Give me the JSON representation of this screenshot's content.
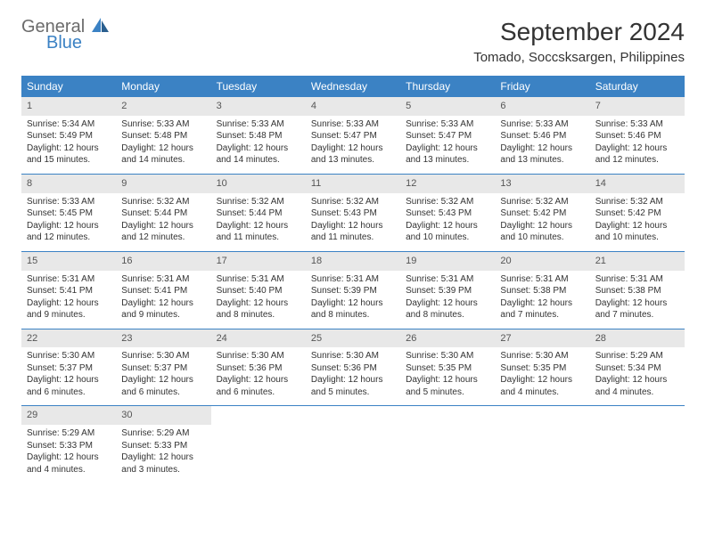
{
  "logo": {
    "text1": "General",
    "text2": "Blue"
  },
  "title": "September 2024",
  "location": "Tomado, Soccsksargen, Philippines",
  "headers": [
    "Sunday",
    "Monday",
    "Tuesday",
    "Wednesday",
    "Thursday",
    "Friday",
    "Saturday"
  ],
  "colors": {
    "header_bg": "#3b82c4",
    "header_fg": "#ffffff",
    "daynum_bg": "#e8e8e8",
    "border": "#3b82c4",
    "logo_gray": "#6b6b6b",
    "logo_blue": "#3b82c4"
  },
  "weeks": [
    [
      {
        "n": "1",
        "sr": "Sunrise: 5:34 AM",
        "ss": "Sunset: 5:49 PM",
        "d1": "Daylight: 12 hours",
        "d2": "and 15 minutes."
      },
      {
        "n": "2",
        "sr": "Sunrise: 5:33 AM",
        "ss": "Sunset: 5:48 PM",
        "d1": "Daylight: 12 hours",
        "d2": "and 14 minutes."
      },
      {
        "n": "3",
        "sr": "Sunrise: 5:33 AM",
        "ss": "Sunset: 5:48 PM",
        "d1": "Daylight: 12 hours",
        "d2": "and 14 minutes."
      },
      {
        "n": "4",
        "sr": "Sunrise: 5:33 AM",
        "ss": "Sunset: 5:47 PM",
        "d1": "Daylight: 12 hours",
        "d2": "and 13 minutes."
      },
      {
        "n": "5",
        "sr": "Sunrise: 5:33 AM",
        "ss": "Sunset: 5:47 PM",
        "d1": "Daylight: 12 hours",
        "d2": "and 13 minutes."
      },
      {
        "n": "6",
        "sr": "Sunrise: 5:33 AM",
        "ss": "Sunset: 5:46 PM",
        "d1": "Daylight: 12 hours",
        "d2": "and 13 minutes."
      },
      {
        "n": "7",
        "sr": "Sunrise: 5:33 AM",
        "ss": "Sunset: 5:46 PM",
        "d1": "Daylight: 12 hours",
        "d2": "and 12 minutes."
      }
    ],
    [
      {
        "n": "8",
        "sr": "Sunrise: 5:33 AM",
        "ss": "Sunset: 5:45 PM",
        "d1": "Daylight: 12 hours",
        "d2": "and 12 minutes."
      },
      {
        "n": "9",
        "sr": "Sunrise: 5:32 AM",
        "ss": "Sunset: 5:44 PM",
        "d1": "Daylight: 12 hours",
        "d2": "and 12 minutes."
      },
      {
        "n": "10",
        "sr": "Sunrise: 5:32 AM",
        "ss": "Sunset: 5:44 PM",
        "d1": "Daylight: 12 hours",
        "d2": "and 11 minutes."
      },
      {
        "n": "11",
        "sr": "Sunrise: 5:32 AM",
        "ss": "Sunset: 5:43 PM",
        "d1": "Daylight: 12 hours",
        "d2": "and 11 minutes."
      },
      {
        "n": "12",
        "sr": "Sunrise: 5:32 AM",
        "ss": "Sunset: 5:43 PM",
        "d1": "Daylight: 12 hours",
        "d2": "and 10 minutes."
      },
      {
        "n": "13",
        "sr": "Sunrise: 5:32 AM",
        "ss": "Sunset: 5:42 PM",
        "d1": "Daylight: 12 hours",
        "d2": "and 10 minutes."
      },
      {
        "n": "14",
        "sr": "Sunrise: 5:32 AM",
        "ss": "Sunset: 5:42 PM",
        "d1": "Daylight: 12 hours",
        "d2": "and 10 minutes."
      }
    ],
    [
      {
        "n": "15",
        "sr": "Sunrise: 5:31 AM",
        "ss": "Sunset: 5:41 PM",
        "d1": "Daylight: 12 hours",
        "d2": "and 9 minutes."
      },
      {
        "n": "16",
        "sr": "Sunrise: 5:31 AM",
        "ss": "Sunset: 5:41 PM",
        "d1": "Daylight: 12 hours",
        "d2": "and 9 minutes."
      },
      {
        "n": "17",
        "sr": "Sunrise: 5:31 AM",
        "ss": "Sunset: 5:40 PM",
        "d1": "Daylight: 12 hours",
        "d2": "and 8 minutes."
      },
      {
        "n": "18",
        "sr": "Sunrise: 5:31 AM",
        "ss": "Sunset: 5:39 PM",
        "d1": "Daylight: 12 hours",
        "d2": "and 8 minutes."
      },
      {
        "n": "19",
        "sr": "Sunrise: 5:31 AM",
        "ss": "Sunset: 5:39 PM",
        "d1": "Daylight: 12 hours",
        "d2": "and 8 minutes."
      },
      {
        "n": "20",
        "sr": "Sunrise: 5:31 AM",
        "ss": "Sunset: 5:38 PM",
        "d1": "Daylight: 12 hours",
        "d2": "and 7 minutes."
      },
      {
        "n": "21",
        "sr": "Sunrise: 5:31 AM",
        "ss": "Sunset: 5:38 PM",
        "d1": "Daylight: 12 hours",
        "d2": "and 7 minutes."
      }
    ],
    [
      {
        "n": "22",
        "sr": "Sunrise: 5:30 AM",
        "ss": "Sunset: 5:37 PM",
        "d1": "Daylight: 12 hours",
        "d2": "and 6 minutes."
      },
      {
        "n": "23",
        "sr": "Sunrise: 5:30 AM",
        "ss": "Sunset: 5:37 PM",
        "d1": "Daylight: 12 hours",
        "d2": "and 6 minutes."
      },
      {
        "n": "24",
        "sr": "Sunrise: 5:30 AM",
        "ss": "Sunset: 5:36 PM",
        "d1": "Daylight: 12 hours",
        "d2": "and 6 minutes."
      },
      {
        "n": "25",
        "sr": "Sunrise: 5:30 AM",
        "ss": "Sunset: 5:36 PM",
        "d1": "Daylight: 12 hours",
        "d2": "and 5 minutes."
      },
      {
        "n": "26",
        "sr": "Sunrise: 5:30 AM",
        "ss": "Sunset: 5:35 PM",
        "d1": "Daylight: 12 hours",
        "d2": "and 5 minutes."
      },
      {
        "n": "27",
        "sr": "Sunrise: 5:30 AM",
        "ss": "Sunset: 5:35 PM",
        "d1": "Daylight: 12 hours",
        "d2": "and 4 minutes."
      },
      {
        "n": "28",
        "sr": "Sunrise: 5:29 AM",
        "ss": "Sunset: 5:34 PM",
        "d1": "Daylight: 12 hours",
        "d2": "and 4 minutes."
      }
    ],
    [
      {
        "n": "29",
        "sr": "Sunrise: 5:29 AM",
        "ss": "Sunset: 5:33 PM",
        "d1": "Daylight: 12 hours",
        "d2": "and 4 minutes."
      },
      {
        "n": "30",
        "sr": "Sunrise: 5:29 AM",
        "ss": "Sunset: 5:33 PM",
        "d1": "Daylight: 12 hours",
        "d2": "and 3 minutes."
      },
      null,
      null,
      null,
      null,
      null
    ]
  ]
}
